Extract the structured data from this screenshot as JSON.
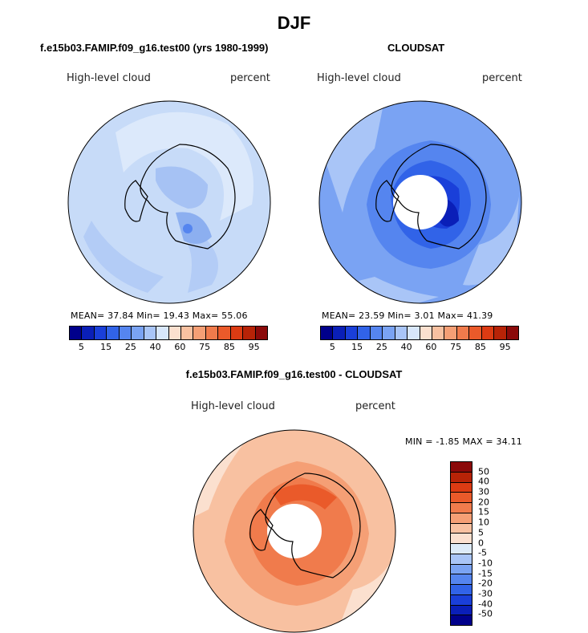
{
  "title": "DJF",
  "panels": [
    {
      "title": "f.e15b03.FAMIP.f09_g16.test00 (yrs 1980-1999)",
      "variable": "High-level cloud",
      "units": "percent",
      "stats": "MEAN=  37.84  Min=  19.43  Max=  55.06"
    },
    {
      "title": "CLOUDSAT",
      "variable": "High-level cloud",
      "units": "percent",
      "stats": "MEAN=  23.59  Min=   3.01  Max=  41.39"
    },
    {
      "title": "f.e15b03.FAMIP.f09_g16.test00 - CLOUDSAT",
      "variable": "High-level cloud",
      "units": "percent",
      "stats": "MIN =   -1.85  MAX =   34.11"
    }
  ],
  "colorbar_levels": {
    "labels": [
      "5",
      "15",
      "25",
      "40",
      "60",
      "75",
      "85",
      "95"
    ],
    "colors": [
      "#00008b",
      "#0a1fb8",
      "#1a3fd9",
      "#3163e8",
      "#5585ef",
      "#7aa3f3",
      "#a9c5f7",
      "#d8e7fb",
      "#fbe0cf",
      "#f8c1a1",
      "#f59f75",
      "#f07b4c",
      "#ea5a2a",
      "#dc3b13",
      "#b72307",
      "#8b0a0a"
    ]
  },
  "diff_colorbar": {
    "labels": [
      "50",
      "40",
      "30",
      "20",
      "15",
      "10",
      "5",
      "0",
      "-5",
      "-10",
      "-15",
      "-20",
      "-30",
      "-40",
      "-50"
    ],
    "colors": [
      "#8b0a0a",
      "#b72307",
      "#dc3b13",
      "#ea5a2a",
      "#f07b4c",
      "#f59f75",
      "#f8c1a1",
      "#fbe0cf",
      "#ddebf8",
      "#a9c5f7",
      "#7aa3f3",
      "#5585ef",
      "#3163e8",
      "#1a3fd9",
      "#0a1fb8",
      "#00008b"
    ]
  }
}
